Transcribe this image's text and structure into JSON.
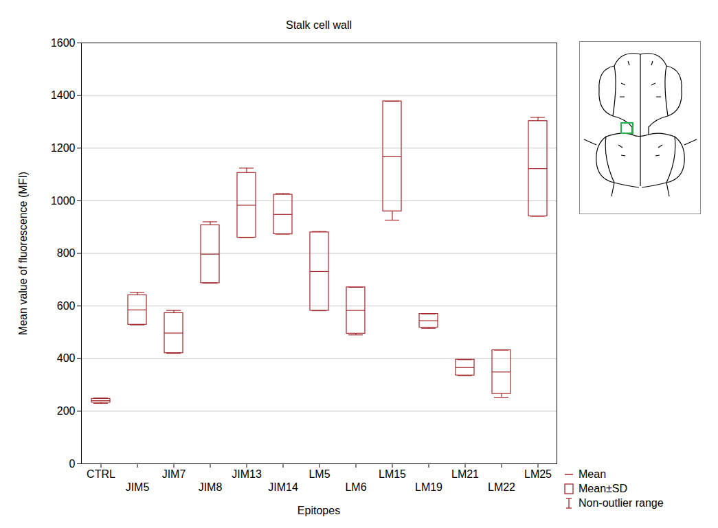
{
  "chart_data": {
    "type": "box",
    "title": "Stalk cell wall",
    "x_label": "Epitopes",
    "y_label": "Mean value of fluorescence (MFI)",
    "categories": [
      "CTRL",
      "JIM5",
      "JIM7",
      "JIM8",
      "JIM13",
      "JIM14",
      "LM5",
      "LM6",
      "LM15",
      "LM19",
      "LM21",
      "LM22",
      "LM25"
    ],
    "series": [
      {
        "name": "Mean",
        "values": [
          240,
          585,
          497,
          797,
          983,
          948,
          731,
          583,
          1169,
          544,
          366,
          349,
          1122
        ]
      },
      {
        "name": "Mean±SD",
        "sd": [
          7,
          56,
          76,
          110,
          123,
          75,
          149,
          88,
          209,
          26,
          30,
          83,
          181
        ]
      },
      {
        "name": "Non-outlier range",
        "min": [
          230,
          528,
          420,
          687,
          860,
          873,
          582,
          490,
          926,
          515,
          335,
          253,
          941
        ],
        "max": [
          250,
          652,
          583,
          920,
          1124,
          1027,
          883,
          671,
          1378,
          570,
          396,
          432,
          1317
        ]
      }
    ],
    "color": "#a3262a",
    "ylim": [
      0,
      1600
    ],
    "yticks": [
      0,
      200,
      400,
      600,
      800,
      1000,
      1200,
      1400,
      1600
    ],
    "grid": true,
    "legend": "bottom-right"
  }
}
